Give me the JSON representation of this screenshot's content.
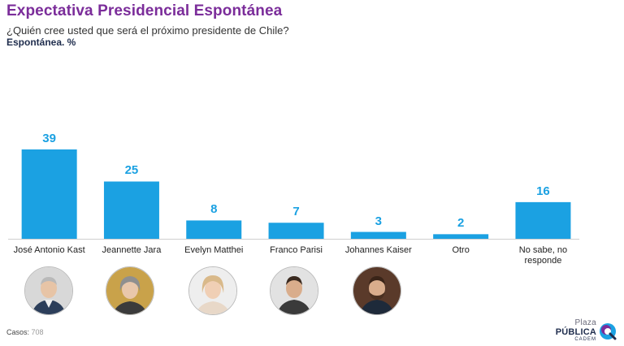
{
  "title": "Expectativa Presidencial Espontánea",
  "subtitle": "¿Quién cree usted que será el próximo presidente de Chile?",
  "subtitle2": "Espontánea. %",
  "chart_data": {
    "type": "bar",
    "categories": [
      "José Antonio Kast",
      "Jeannette Jara",
      "Evelyn Matthei",
      "Franco Parisi",
      "Johannes Kaiser",
      "Otro",
      "No sabe, no responde"
    ],
    "values": [
      39,
      25,
      8,
      7,
      3,
      2,
      16
    ],
    "title": "Expectativa Presidencial Espontánea",
    "xlabel": "",
    "ylabel": "",
    "ylim": [
      0,
      42
    ],
    "grid": false,
    "bar_color": "#1ba1e2"
  },
  "footer": {
    "casos_label": "Casos:",
    "casos_value": "708"
  },
  "logo": {
    "line1": "Plaza",
    "line2": "PÚBLICA",
    "line3": "CADEM"
  },
  "colors": {
    "title": "#7b2d9a",
    "bar": "#1ba1e2",
    "navy": "#1f2d4d"
  }
}
